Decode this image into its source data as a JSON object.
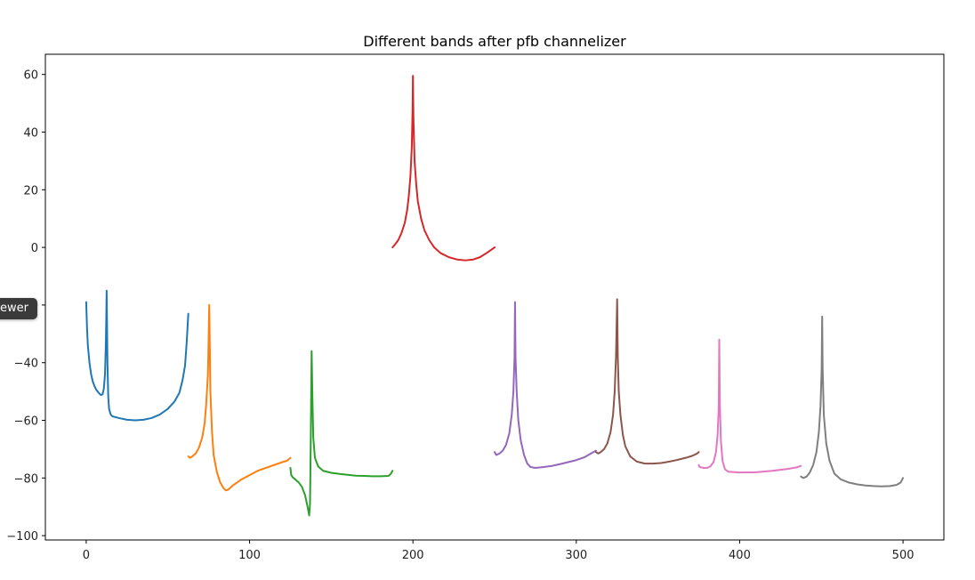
{
  "chart_data": {
    "type": "line",
    "title": "Different bands after pfb channelizer",
    "xlabel": "",
    "ylabel": "",
    "xlim": [
      -25,
      525
    ],
    "ylim": [
      -101.5,
      67
    ],
    "xticks": [
      0,
      100,
      200,
      300,
      400,
      500
    ],
    "yticks": [
      60,
      40,
      20,
      0,
      -20,
      -40,
      -60,
      -80,
      -100
    ],
    "ytick_labels": [
      "60",
      "40",
      "20",
      "0",
      "−20",
      "−40",
      "−60",
      "−80",
      "−100"
    ],
    "xtick_labels": [
      "0",
      "100",
      "200",
      "300",
      "400",
      "500"
    ],
    "grid": false,
    "series": [
      {
        "color": "#1f77b4",
        "points": [
          [
            0,
            -19
          ],
          [
            0.5,
            -28
          ],
          [
            1,
            -34
          ],
          [
            2,
            -40
          ],
          [
            3,
            -44
          ],
          [
            4,
            -46.5
          ],
          [
            5,
            -48
          ],
          [
            6,
            -49.2
          ],
          [
            7,
            -50
          ],
          [
            8,
            -50.7
          ],
          [
            9,
            -51.2
          ],
          [
            10,
            -51
          ],
          [
            10.8,
            -49
          ],
          [
            11.5,
            -44
          ],
          [
            12,
            -34
          ],
          [
            12.3,
            -24
          ],
          [
            12.5,
            -15
          ],
          [
            12.7,
            -24
          ],
          [
            13,
            -40
          ],
          [
            13.5,
            -52
          ],
          [
            14,
            -56
          ],
          [
            15,
            -58
          ],
          [
            16,
            -58.6
          ],
          [
            20,
            -59.2
          ],
          [
            25,
            -59.8
          ],
          [
            30,
            -60
          ],
          [
            35,
            -59.8
          ],
          [
            40,
            -59.2
          ],
          [
            45,
            -58
          ],
          [
            50,
            -56
          ],
          [
            54,
            -53.5
          ],
          [
            57,
            -50.5
          ],
          [
            59,
            -46
          ],
          [
            60.5,
            -41
          ],
          [
            61.5,
            -33
          ],
          [
            62.5,
            -23
          ]
        ]
      },
      {
        "color": "#ff7f0e",
        "points": [
          [
            62.5,
            -72.5
          ],
          [
            63.5,
            -73
          ],
          [
            65,
            -72.5
          ],
          [
            67,
            -71.5
          ],
          [
            69,
            -69.5
          ],
          [
            71,
            -66
          ],
          [
            72.5,
            -61
          ],
          [
            73.5,
            -54
          ],
          [
            74.5,
            -44
          ],
          [
            75,
            -30
          ],
          [
            75.3,
            -20
          ],
          [
            75.6,
            -32
          ],
          [
            76,
            -50
          ],
          [
            77,
            -64
          ],
          [
            78,
            -72
          ],
          [
            80,
            -78
          ],
          [
            82,
            -81.5
          ],
          [
            84,
            -83.5
          ],
          [
            85.5,
            -84.3
          ],
          [
            87,
            -84
          ],
          [
            90,
            -82.5
          ],
          [
            95,
            -80.5
          ],
          [
            100,
            -79
          ],
          [
            105,
            -77.5
          ],
          [
            110,
            -76.5
          ],
          [
            115,
            -75.5
          ],
          [
            120,
            -74.5
          ],
          [
            123,
            -74
          ],
          [
            125,
            -73
          ]
        ]
      },
      {
        "color": "#2ca02c",
        "points": [
          [
            125,
            -76.5
          ],
          [
            125.5,
            -79
          ],
          [
            126.5,
            -79.8
          ],
          [
            128,
            -80.5
          ],
          [
            130,
            -81.5
          ],
          [
            132,
            -83
          ],
          [
            134,
            -86
          ],
          [
            135.5,
            -90
          ],
          [
            136.5,
            -93
          ],
          [
            137,
            -89
          ],
          [
            137.5,
            -65
          ],
          [
            137.8,
            -46
          ],
          [
            138,
            -36
          ],
          [
            138.4,
            -50
          ],
          [
            139,
            -66
          ],
          [
            140,
            -73
          ],
          [
            142,
            -76
          ],
          [
            145,
            -77.5
          ],
          [
            150,
            -78.2
          ],
          [
            155,
            -78.6
          ],
          [
            160,
            -78.9
          ],
          [
            165,
            -79.2
          ],
          [
            170,
            -79.3
          ],
          [
            175,
            -79.4
          ],
          [
            180,
            -79.4
          ],
          [
            185,
            -79.3
          ],
          [
            186.5,
            -78.5
          ],
          [
            187.5,
            -77.5
          ]
        ]
      },
      {
        "color": "#d62728",
        "points": [
          [
            187.5,
            0
          ],
          [
            189,
            1
          ],
          [
            191,
            2.5
          ],
          [
            193,
            5
          ],
          [
            195,
            8.5
          ],
          [
            196.5,
            13
          ],
          [
            197.5,
            18
          ],
          [
            198.5,
            25
          ],
          [
            199.3,
            35
          ],
          [
            199.8,
            48
          ],
          [
            200,
            59.5
          ],
          [
            200.3,
            45
          ],
          [
            201,
            30
          ],
          [
            202,
            22
          ],
          [
            203,
            16
          ],
          [
            205,
            10
          ],
          [
            207,
            6
          ],
          [
            210,
            2.5
          ],
          [
            213,
            0
          ],
          [
            217,
            -2
          ],
          [
            222,
            -3.4
          ],
          [
            227,
            -4.2
          ],
          [
            232,
            -4.5
          ],
          [
            237,
            -4.2
          ],
          [
            241,
            -3.4
          ],
          [
            245,
            -2
          ],
          [
            248,
            -0.8
          ],
          [
            250,
            0
          ]
        ]
      },
      {
        "color": "#9467bd",
        "points": [
          [
            250,
            -71
          ],
          [
            251,
            -72
          ],
          [
            253,
            -71.5
          ],
          [
            255,
            -70.5
          ],
          [
            257,
            -68.5
          ],
          [
            259,
            -64.5
          ],
          [
            260.5,
            -58
          ],
          [
            261.5,
            -50
          ],
          [
            262.2,
            -38
          ],
          [
            262.5,
            -19
          ],
          [
            262.8,
            -38
          ],
          [
            263.5,
            -50
          ],
          [
            264.5,
            -60
          ],
          [
            266,
            -67
          ],
          [
            268,
            -72
          ],
          [
            270,
            -75
          ],
          [
            272,
            -76.2
          ],
          [
            275,
            -76.5
          ],
          [
            280,
            -76.2
          ],
          [
            285,
            -75.8
          ],
          [
            290,
            -75.2
          ],
          [
            295,
            -74.5
          ],
          [
            300,
            -73.8
          ],
          [
            305,
            -72.8
          ],
          [
            309,
            -71.5
          ],
          [
            312,
            -70.5
          ]
        ]
      },
      {
        "color": "#8c564b",
        "points": [
          [
            312,
            -71
          ],
          [
            313.5,
            -71.5
          ],
          [
            315,
            -71
          ],
          [
            317,
            -70
          ],
          [
            319,
            -68
          ],
          [
            321,
            -64
          ],
          [
            322.5,
            -58
          ],
          [
            323.5,
            -50
          ],
          [
            324.3,
            -38
          ],
          [
            325,
            -18
          ],
          [
            325.4,
            -38
          ],
          [
            326,
            -50
          ],
          [
            327,
            -58
          ],
          [
            328.5,
            -65
          ],
          [
            330,
            -69
          ],
          [
            333,
            -72.5
          ],
          [
            337,
            -74.3
          ],
          [
            342,
            -75
          ],
          [
            347,
            -75
          ],
          [
            352,
            -74.8
          ],
          [
            357,
            -74.3
          ],
          [
            362,
            -73.7
          ],
          [
            367,
            -73
          ],
          [
            371,
            -72.3
          ],
          [
            374,
            -71.5
          ],
          [
            375,
            -71
          ]
        ]
      },
      {
        "color": "#e377c2",
        "points": [
          [
            375,
            -75.5
          ],
          [
            375.5,
            -76.2
          ],
          [
            378,
            -76.5
          ],
          [
            380,
            -76.5
          ],
          [
            382,
            -76
          ],
          [
            384,
            -74.5
          ],
          [
            385.5,
            -71
          ],
          [
            386.5,
            -65
          ],
          [
            387.2,
            -55
          ],
          [
            387.5,
            -32
          ],
          [
            387.9,
            -55
          ],
          [
            388.5,
            -67
          ],
          [
            389.5,
            -74
          ],
          [
            391,
            -77
          ],
          [
            393,
            -77.8
          ],
          [
            400,
            -78.1
          ],
          [
            410,
            -78
          ],
          [
            420,
            -77.5
          ],
          [
            430,
            -76.8
          ],
          [
            435,
            -76.3
          ],
          [
            437.5,
            -75.8
          ]
        ]
      },
      {
        "color": "#7f7f7f",
        "points": [
          [
            437.5,
            -79.5
          ],
          [
            439,
            -80
          ],
          [
            441,
            -79.5
          ],
          [
            443,
            -78
          ],
          [
            445,
            -75.5
          ],
          [
            447,
            -71
          ],
          [
            448.5,
            -64
          ],
          [
            449.5,
            -55
          ],
          [
            450.2,
            -42
          ],
          [
            450.5,
            -24
          ],
          [
            450.8,
            -42
          ],
          [
            451.5,
            -58
          ],
          [
            453,
            -68
          ],
          [
            455,
            -74
          ],
          [
            458,
            -78.5
          ],
          [
            462,
            -80.5
          ],
          [
            467,
            -81.6
          ],
          [
            472,
            -82.2
          ],
          [
            477,
            -82.6
          ],
          [
            482,
            -82.8
          ],
          [
            487,
            -82.9
          ],
          [
            492,
            -82.8
          ],
          [
            496,
            -82.4
          ],
          [
            498.5,
            -81.6
          ],
          [
            500,
            -80
          ]
        ]
      }
    ]
  },
  "overlay": {
    "tooltip_text": "ewer"
  }
}
